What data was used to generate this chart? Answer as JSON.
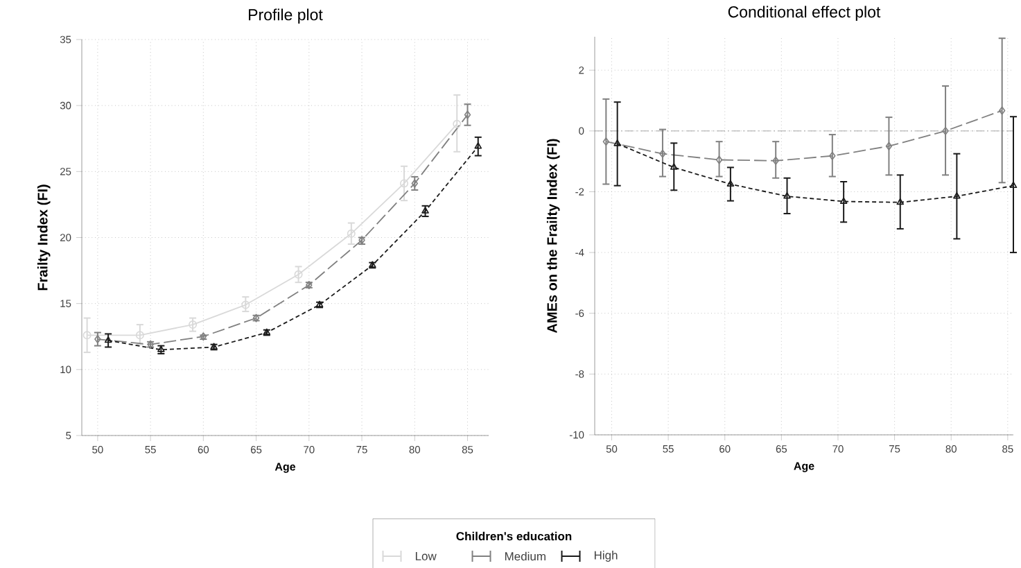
{
  "chart_data": [
    {
      "type": "line",
      "title": "Profile plot",
      "xlabel": "Age",
      "ylabel": "Frailty Index (FI)",
      "xlim": [
        48.5,
        87
      ],
      "ylim": [
        5,
        35
      ],
      "xticks": [
        50,
        55,
        60,
        65,
        70,
        75,
        80,
        85
      ],
      "yticks": [
        5,
        10,
        15,
        20,
        25,
        30,
        35
      ],
      "grid": true,
      "legend": "bottom",
      "legend_title": "Children's education",
      "series": [
        {
          "name": "Low",
          "color": "#d9d9d9",
          "marker": "circle",
          "line_style": "solid",
          "x": [
            49,
            54,
            59,
            64,
            69,
            74,
            79,
            84
          ],
          "values": [
            12.6,
            12.6,
            13.4,
            14.9,
            17.2,
            20.3,
            24.1,
            28.6
          ],
          "errors": [
            [
              11.3,
              13.9
            ],
            [
              11.9,
              13.4
            ],
            [
              12.9,
              13.9
            ],
            [
              14.4,
              15.5
            ],
            [
              16.6,
              17.8
            ],
            [
              19.5,
              21.1
            ],
            [
              22.8,
              25.4
            ],
            [
              26.5,
              30.8
            ]
          ]
        },
        {
          "name": "Medium",
          "color": "#808080",
          "marker": "diamond",
          "line_style": "dashed",
          "x": [
            50,
            55,
            60,
            65,
            70,
            75,
            80,
            85
          ],
          "values": [
            12.3,
            11.9,
            12.5,
            13.9,
            16.4,
            19.8,
            24.1,
            29.3
          ],
          "errors": [
            [
              11.8,
              12.8
            ],
            [
              11.7,
              12.1
            ],
            [
              12.3,
              12.6
            ],
            [
              13.7,
              14.1
            ],
            [
              16.2,
              16.6
            ],
            [
              19.5,
              20.0
            ],
            [
              23.6,
              24.6
            ],
            [
              28.5,
              30.1
            ]
          ]
        },
        {
          "name": "High",
          "color": "#1a1a1a",
          "marker": "triangle",
          "line_style": "dotted",
          "x": [
            51,
            56,
            61,
            66,
            71,
            76,
            81,
            86
          ],
          "values": [
            12.2,
            11.5,
            11.7,
            12.8,
            14.9,
            17.9,
            22.0,
            26.9
          ],
          "errors": [
            [
              11.7,
              12.7
            ],
            [
              11.2,
              11.8
            ],
            [
              11.5,
              11.9
            ],
            [
              12.6,
              13.0
            ],
            [
              14.7,
              15.1
            ],
            [
              17.7,
              18.1
            ],
            [
              21.6,
              22.4
            ],
            [
              26.2,
              27.6
            ]
          ]
        }
      ]
    },
    {
      "type": "line",
      "title": "Conditional effect plot",
      "xlabel": "Age",
      "ylabel": "AMEs on the Frailty Index (FI)",
      "xlim": [
        48.5,
        85.5
      ],
      "ylim": [
        -10,
        3.1
      ],
      "xticks": [
        50,
        55,
        60,
        65,
        70,
        75,
        80,
        85
      ],
      "yticks": [
        -10,
        -8,
        -6,
        -4,
        -2,
        0,
        2
      ],
      "grid": true,
      "ref_lines": [
        {
          "axis": "y",
          "value": 0,
          "color": "#909090",
          "line_style": "dashed"
        }
      ],
      "series": [
        {
          "color": "#808080",
          "marker": "diamond",
          "line_style": "dashed",
          "x": [
            49.5,
            54.5,
            59.5,
            64.5,
            69.5,
            74.5,
            79.5,
            84.5
          ],
          "values": [
            -0.35,
            -0.75,
            -0.95,
            -0.98,
            -0.82,
            -0.5,
            0.0,
            0.67
          ],
          "errors": [
            [
              -1.75,
              1.05
            ],
            [
              -1.5,
              0.05
            ],
            [
              -1.5,
              -0.35
            ],
            [
              -1.55,
              -0.35
            ],
            [
              -1.5,
              -0.12
            ],
            [
              -1.45,
              0.45
            ],
            [
              -1.45,
              1.48
            ],
            [
              -1.7,
              3.05
            ]
          ]
        },
        {
          "color": "#1a1a1a",
          "marker": "triangle",
          "line_style": "dotted",
          "x": [
            50.5,
            55.5,
            60.5,
            65.5,
            70.5,
            75.5,
            80.5,
            85.5
          ],
          "values": [
            -0.42,
            -1.2,
            -1.75,
            -2.15,
            -2.32,
            -2.35,
            -2.15,
            -1.8
          ],
          "errors": [
            [
              -1.8,
              0.95
            ],
            [
              -1.95,
              -0.4
            ],
            [
              -2.3,
              -1.2
            ],
            [
              -2.72,
              -1.55
            ],
            [
              -3.0,
              -1.67
            ],
            [
              -3.22,
              -1.45
            ],
            [
              -3.55,
              -0.75
            ],
            [
              -4.0,
              0.47
            ]
          ]
        }
      ]
    }
  ]
}
